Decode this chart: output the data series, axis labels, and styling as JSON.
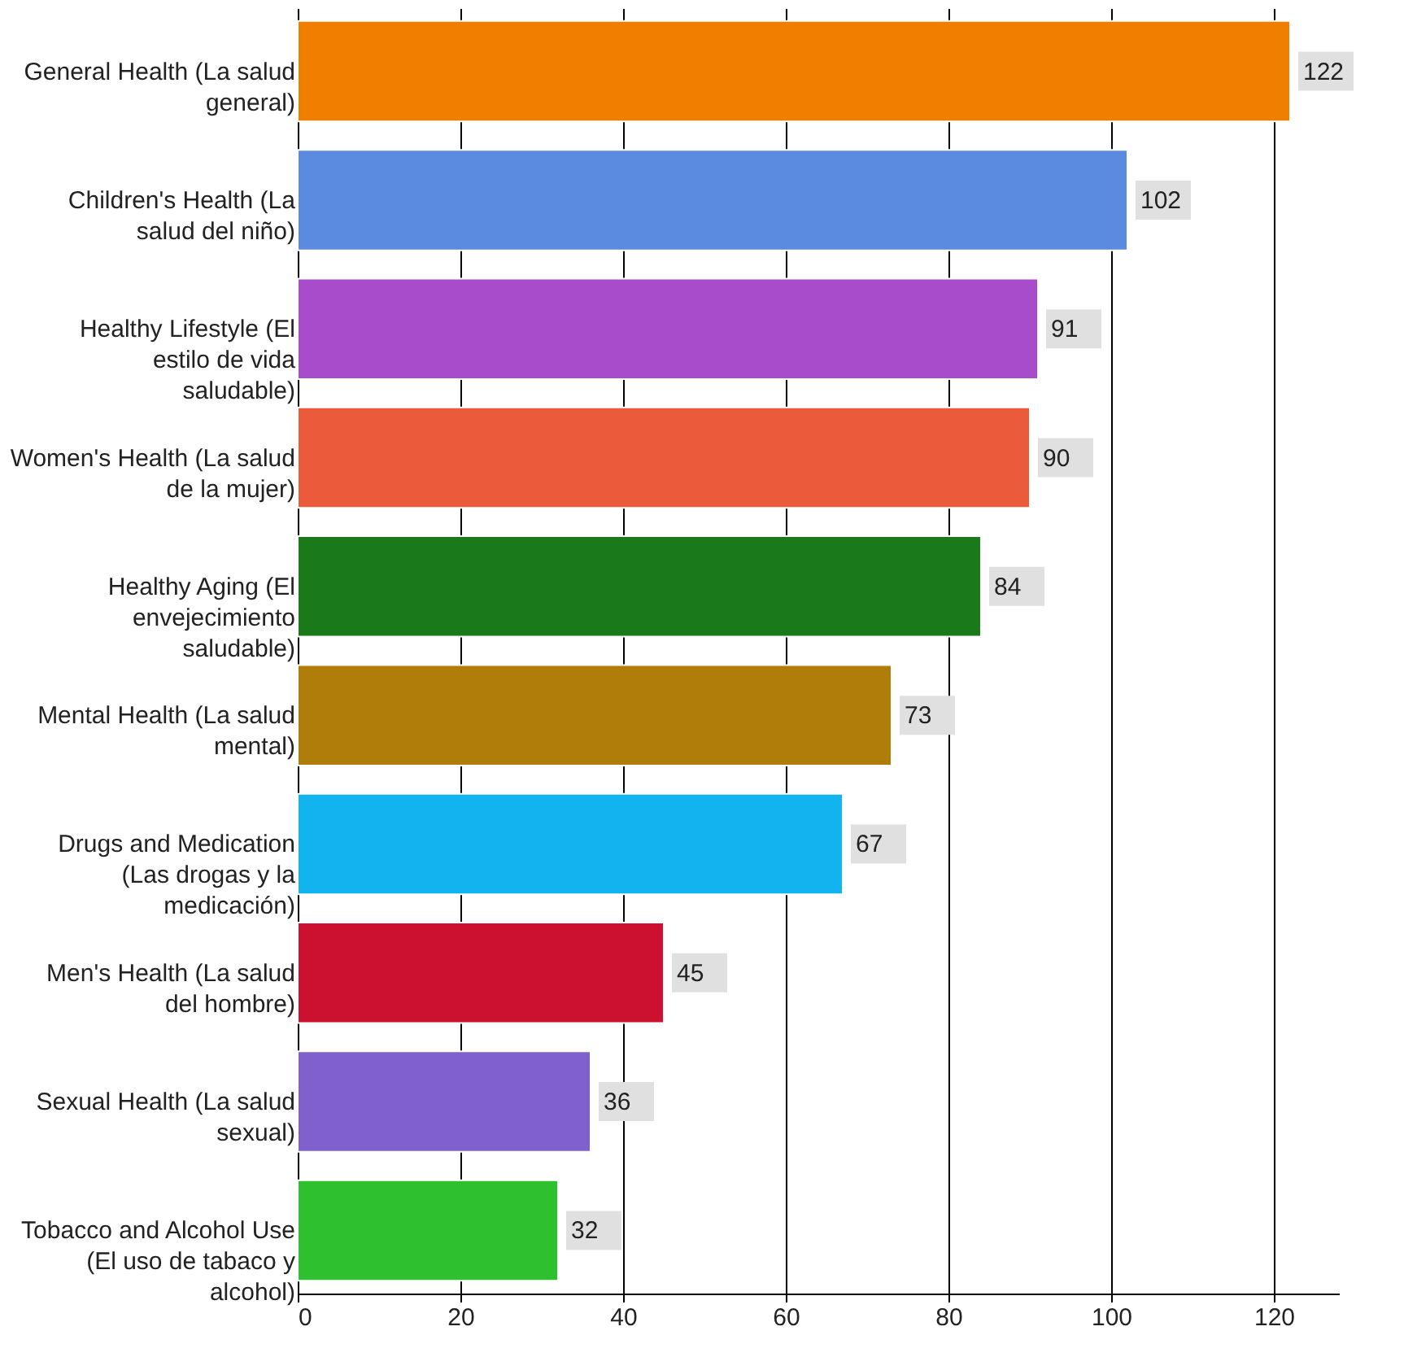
{
  "chart_data": {
    "type": "bar",
    "orientation": "horizontal",
    "categories": [
      "General Health (La salud general)",
      "Children's Health (La salud del niño)",
      "Healthy Lifestyle (El estilo de vida saludable)",
      "Women's Health (La salud de la mujer)",
      "Healthy Aging (El envejecimiento saludable)",
      "Mental Health (La salud mental)",
      "Drugs and Medication (Las drogas y la medicación)",
      "Men's Health (La salud del hombre)",
      "Sexual Health (La salud sexual)",
      "Tobacco and Alcohol Use (El uso de tabaco y alcohol)"
    ],
    "values": [
      122,
      102,
      91,
      90,
      84,
      73,
      67,
      45,
      36,
      32
    ],
    "colors": [
      "#f07f00",
      "#5a8be0",
      "#a94ccc",
      "#ec5a3c",
      "#1a7a1a",
      "#b07d0a",
      "#12b4f0",
      "#cc1030",
      "#8060cc",
      "#2ec02e"
    ],
    "xlim": [
      0,
      128
    ],
    "xticks": [
      0,
      20,
      40,
      60,
      80,
      100,
      120
    ],
    "grid": "x",
    "data_labels": true
  }
}
